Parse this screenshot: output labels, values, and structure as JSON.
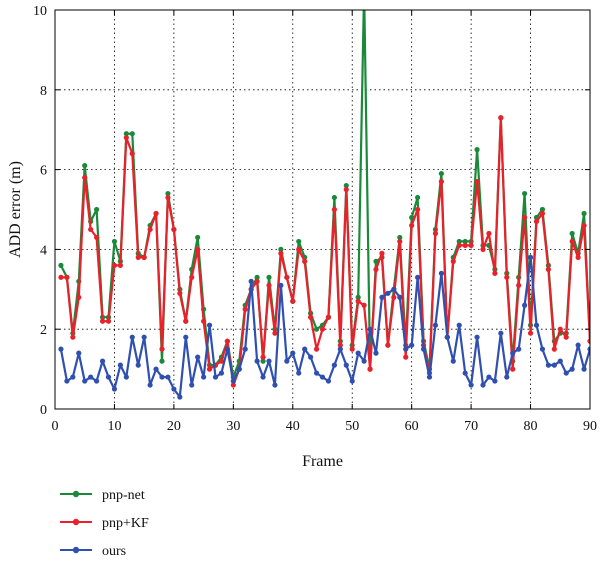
{
  "chart_data": {
    "type": "line",
    "xlabel": "Frame",
    "ylabel": "ADD error (m)",
    "xlim": [
      0,
      90
    ],
    "ylim": [
      0,
      10
    ],
    "xticks": [
      0,
      10,
      20,
      30,
      40,
      50,
      60,
      70,
      80,
      90
    ],
    "yticks": [
      0,
      2,
      4,
      6,
      8,
      10
    ],
    "grid": "dotted, major ticks",
    "legend_position": "below plot, left",
    "x": [
      1,
      2,
      3,
      4,
      5,
      6,
      7,
      8,
      9,
      10,
      11,
      12,
      13,
      14,
      15,
      16,
      17,
      18,
      19,
      20,
      21,
      22,
      23,
      24,
      25,
      26,
      27,
      28,
      29,
      30,
      31,
      32,
      33,
      34,
      35,
      36,
      37,
      38,
      39,
      40,
      41,
      42,
      43,
      44,
      45,
      46,
      47,
      48,
      49,
      50,
      51,
      52,
      53,
      54,
      55,
      56,
      57,
      58,
      59,
      60,
      61,
      62,
      63,
      64,
      65,
      66,
      67,
      68,
      69,
      70,
      71,
      72,
      73,
      74,
      75,
      76,
      77,
      78,
      79,
      80,
      81,
      82,
      83,
      84,
      85,
      86,
      87,
      88,
      89,
      90
    ],
    "series": [
      {
        "name": "pnp-net",
        "color": "#1a8a3a",
        "values": [
          3.6,
          3.3,
          1.9,
          3.2,
          6.1,
          4.7,
          5.0,
          2.3,
          2.3,
          4.2,
          3.7,
          6.9,
          6.9,
          3.9,
          3.8,
          4.6,
          4.9,
          1.2,
          5.4,
          4.5,
          3.0,
          2.2,
          3.5,
          4.3,
          2.5,
          1.1,
          1.1,
          1.3,
          1.7,
          0.8,
          1.2,
          2.6,
          3.0,
          3.3,
          1.2,
          3.3,
          2.0,
          4.0,
          3.3,
          2.7,
          4.2,
          3.8,
          2.4,
          2.0,
          2.1,
          2.3,
          5.3,
          1.7,
          5.6,
          1.6,
          2.8,
          10.5,
          1.0,
          3.7,
          3.8,
          1.6,
          3.0,
          4.3,
          1.6,
          4.8,
          5.3,
          1.7,
          1.0,
          4.5,
          5.9,
          1.8,
          3.8,
          4.2,
          4.2,
          4.2,
          6.5,
          4.1,
          4.1,
          3.5,
          7.3,
          3.4,
          1.2,
          3.3,
          5.4,
          2.1,
          4.8,
          5.0,
          3.6,
          1.7,
          1.9,
          1.9,
          4.4,
          3.9,
          4.9,
          1.7
        ]
      },
      {
        "name": "pnp+KF",
        "color": "#e8212b",
        "values": [
          3.3,
          3.3,
          1.8,
          2.8,
          5.8,
          4.5,
          4.3,
          2.2,
          2.2,
          3.6,
          3.6,
          6.8,
          6.4,
          3.8,
          3.8,
          4.5,
          4.9,
          1.5,
          5.3,
          4.5,
          2.9,
          2.2,
          3.3,
          4.0,
          2.2,
          1.0,
          1.1,
          1.2,
          1.7,
          0.6,
          1.0,
          2.5,
          3.0,
          3.2,
          1.3,
          3.1,
          1.9,
          3.9,
          3.3,
          2.7,
          4.0,
          3.7,
          2.3,
          1.5,
          2.0,
          2.3,
          5.0,
          1.6,
          5.5,
          1.5,
          2.7,
          2.6,
          1.0,
          3.5,
          3.9,
          1.6,
          2.8,
          4.2,
          1.3,
          4.6,
          5.0,
          1.6,
          0.9,
          4.4,
          5.7,
          1.8,
          3.7,
          4.1,
          4.1,
          4.1,
          5.7,
          4.0,
          4.4,
          3.4,
          7.3,
          3.3,
          1.0,
          3.1,
          4.8,
          1.9,
          4.7,
          4.9,
          3.5,
          1.5,
          2.0,
          1.8,
          4.2,
          3.8,
          4.6,
          1.7
        ]
      },
      {
        "name": "ours",
        "color": "#3050b0",
        "values": [
          1.5,
          0.7,
          0.8,
          1.4,
          0.7,
          0.8,
          0.7,
          1.2,
          0.8,
          0.5,
          1.1,
          0.8,
          1.8,
          1.1,
          1.8,
          0.6,
          1.0,
          0.8,
          0.8,
          0.5,
          0.3,
          1.8,
          0.6,
          1.3,
          0.8,
          2.1,
          0.8,
          0.9,
          1.5,
          0.7,
          1.0,
          1.5,
          3.2,
          1.2,
          0.8,
          1.2,
          0.6,
          3.1,
          1.2,
          1.4,
          0.9,
          1.5,
          1.3,
          0.9,
          0.8,
          0.7,
          1.1,
          1.5,
          1.1,
          0.7,
          1.4,
          1.2,
          2.0,
          1.4,
          2.8,
          2.9,
          3.0,
          2.8,
          1.5,
          1.6,
          3.3,
          1.5,
          0.8,
          2.1,
          3.4,
          1.8,
          1.2,
          2.1,
          0.9,
          0.6,
          1.8,
          0.6,
          0.8,
          0.7,
          1.9,
          0.8,
          1.4,
          1.5,
          2.6,
          3.8,
          2.1,
          1.5,
          1.1,
          1.1,
          1.2,
          0.9,
          1.0,
          1.6,
          1.0,
          1.5
        ]
      }
    ]
  }
}
